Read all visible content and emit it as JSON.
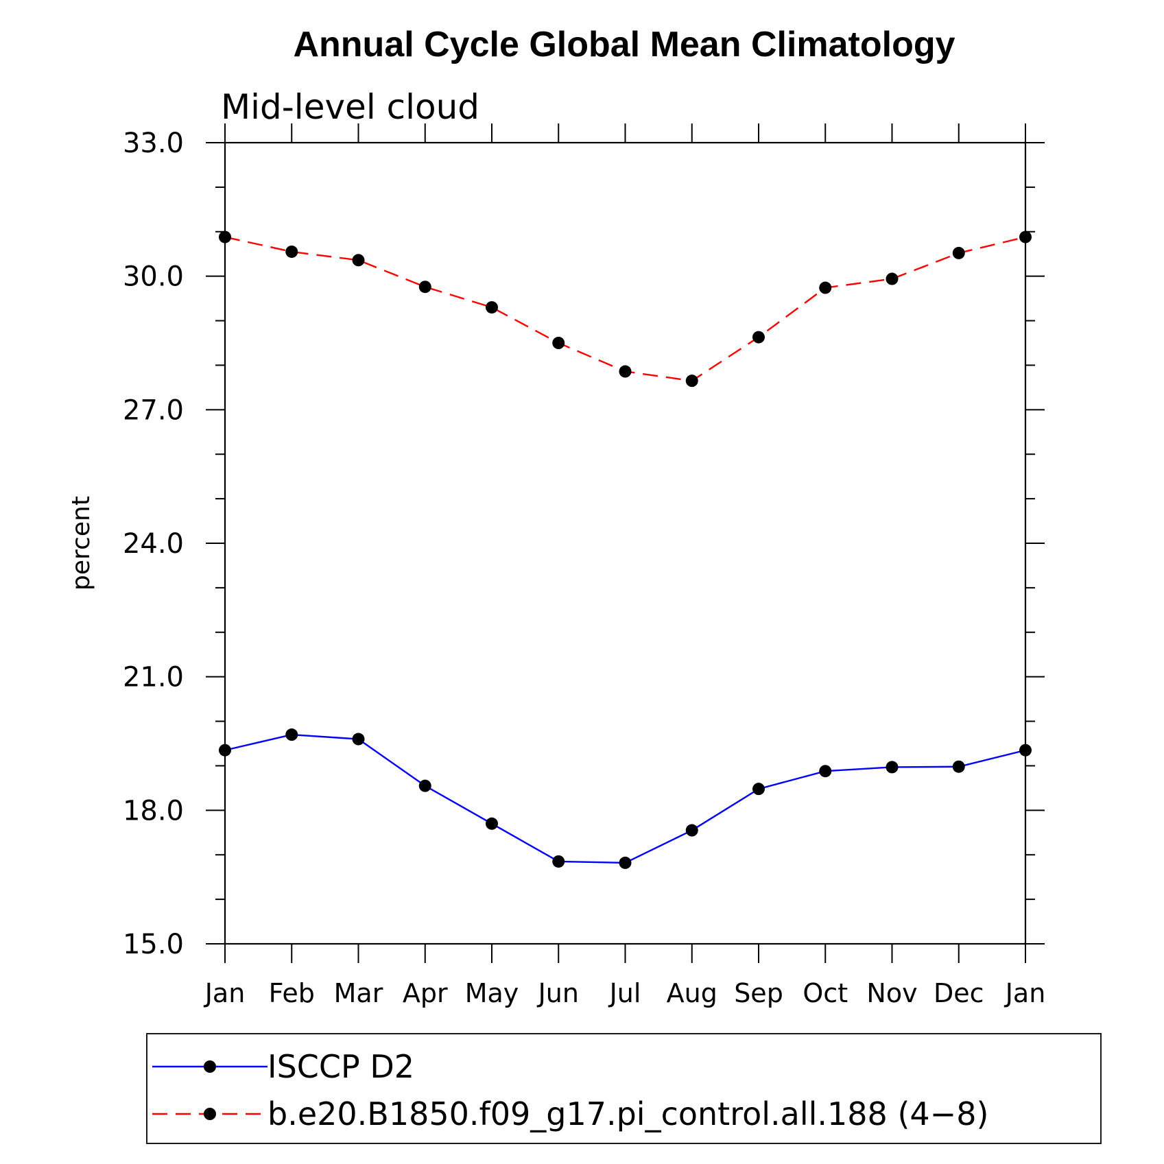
{
  "chart_data": {
    "type": "line",
    "title": "Annual Cycle Global Mean Climatology",
    "subtitle": "Mid-level cloud",
    "xlabel": "",
    "ylabel": "percent",
    "categories": [
      "Jan",
      "Feb",
      "Mar",
      "Apr",
      "May",
      "Jun",
      "Jul",
      "Aug",
      "Sep",
      "Oct",
      "Nov",
      "Dec",
      "Jan"
    ],
    "ylim": [
      15.0,
      33.0
    ],
    "yticks": [
      "15.0",
      "18.0",
      "21.0",
      "24.0",
      "27.0",
      "30.0",
      "33.0"
    ],
    "ytick_values": [
      15,
      18,
      21,
      24,
      27,
      30,
      33
    ],
    "yminor_step": 1,
    "grid": false,
    "legend_position": "bottom",
    "series": [
      {
        "name": "ISCCP D2",
        "color": "#0000ff",
        "dashed": false,
        "values": [
          19.35,
          19.7,
          19.6,
          18.55,
          17.7,
          16.85,
          16.82,
          17.55,
          18.48,
          18.88,
          18.97,
          18.98,
          19.35
        ]
      },
      {
        "name": "b.e20.B1850.f09_g17.pi_control.all.188 (4−8)",
        "color": "#ff0000",
        "dashed": true,
        "values": [
          30.88,
          30.55,
          30.36,
          29.76,
          29.3,
          28.5,
          27.86,
          27.65,
          28.63,
          29.74,
          29.94,
          30.52,
          30.88
        ]
      }
    ]
  }
}
